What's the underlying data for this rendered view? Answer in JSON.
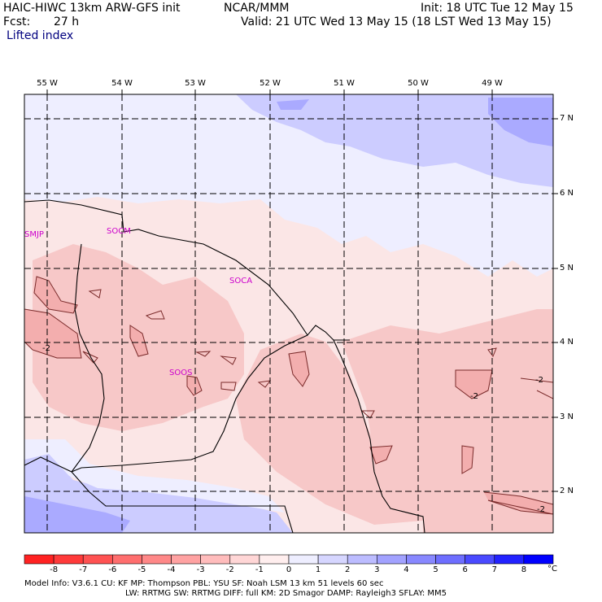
{
  "header": {
    "title": "HAIC-HIWC 13km ARW-GFS init",
    "org": "NCAR/MMM",
    "init": "Init: 18 UTC Tue 12 May 15",
    "fcst_label": "Fcst:",
    "fcst_value": "27 h",
    "valid": "Valid: 21 UTC Wed 13 May 15 (18 LST Wed 13 May 15)",
    "field": "Lifted index"
  },
  "map": {
    "longitude_labels": [
      "55 W",
      "54 W",
      "53 W",
      "52 W",
      "51 W",
      "50 W",
      "49 W"
    ],
    "latitude_labels": [
      "7 N",
      "6 N",
      "5 N",
      "4 N",
      "3 N",
      "2 N"
    ],
    "stations": [
      "SMJP",
      "SOCM",
      "SOCA",
      "SOOS"
    ],
    "contour_label": "-2",
    "colors": {
      "very_light_pink": "#fbe4e4",
      "light_pink": "#f7c8c8",
      "mid_pink": "#f3aeae",
      "very_light_blue": "#eeeeff",
      "light_blue": "#ccccff",
      "mid_blue": "#aaaaff",
      "coast": "#000000",
      "grid": "#000000"
    }
  },
  "colorbar": {
    "unit": "°C",
    "labels": [
      "-8",
      "-7",
      "-6",
      "-5",
      "-4",
      "-3",
      "-2",
      "-1",
      "0",
      "1",
      "2",
      "3",
      "4",
      "5",
      "6",
      "7",
      "8"
    ],
    "colors": [
      "#ff2222",
      "#ff3a3a",
      "#ff5252",
      "#ff6e6e",
      "#ff8888",
      "#ffa2a2",
      "#ffbcbc",
      "#ffd6d6",
      "#ffeeee",
      "#eeeeff",
      "#d6d6ff",
      "#bcbcff",
      "#a2a2ff",
      "#8888ff",
      "#6e6eff",
      "#4a4aff",
      "#2222ff",
      "#0000ff"
    ]
  },
  "footer": {
    "line1": "Model Info: V3.6.1     CU: KF        MP: Thompson     PBL: YSU        SF: Noah LSM      13 km    51 levels    60 sec",
    "line2": "LW: RRTMG    SW: RRTMG   DIFF: full     KM: 2D Smagor DAMP: Rayleigh3    SFLAY: MM5"
  }
}
